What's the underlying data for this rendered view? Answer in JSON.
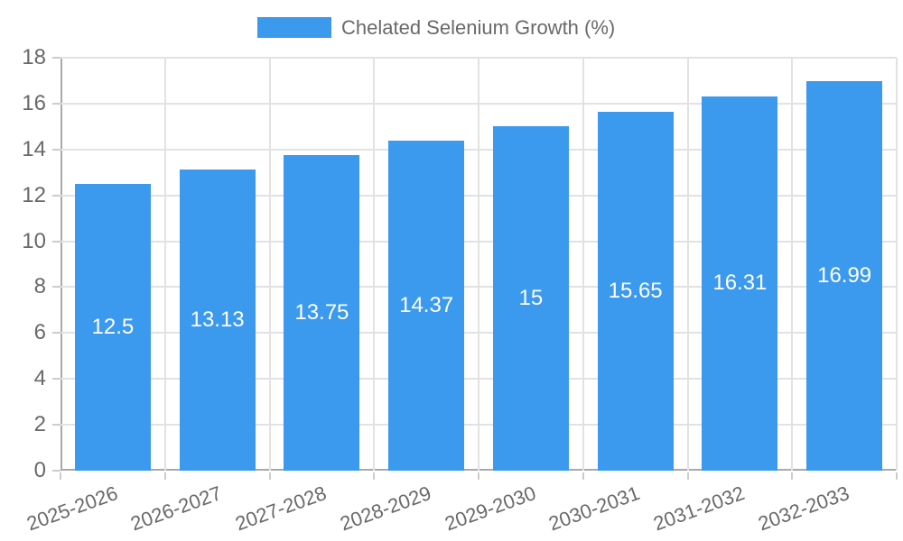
{
  "chart_data": {
    "type": "bar",
    "title": "Chelated Selenium Growth (%)",
    "legend": {
      "label": "Chelated Selenium Growth (%)",
      "position": "top"
    },
    "categories": [
      "2025-2026",
      "2026-2027",
      "2027-2028",
      "2028-2029",
      "2029-2030",
      "2030-2031",
      "2031-2032",
      "2032-2033"
    ],
    "values": [
      12.5,
      13.13,
      13.75,
      14.37,
      15,
      15.65,
      16.31,
      16.99
    ],
    "value_labels": [
      "12.5",
      "13.13",
      "13.75",
      "14.37",
      "15",
      "15.65",
      "16.31",
      "16.99"
    ],
    "xlabel": "",
    "ylabel": "",
    "ylim": [
      0,
      18
    ],
    "ytick_step": 2,
    "ytick_labels": [
      "0",
      "2",
      "4",
      "6",
      "8",
      "10",
      "12",
      "14",
      "16",
      "18"
    ],
    "grid": true,
    "x_label_rotation_deg": -20
  },
  "colors": {
    "bar": "#3b99ee",
    "bar_label": "#ffffff",
    "grid": "#e2e2e2",
    "axis": "#a9a9a9",
    "tick": "#cccccc",
    "text": "#696969",
    "background": "#ffffff"
  }
}
